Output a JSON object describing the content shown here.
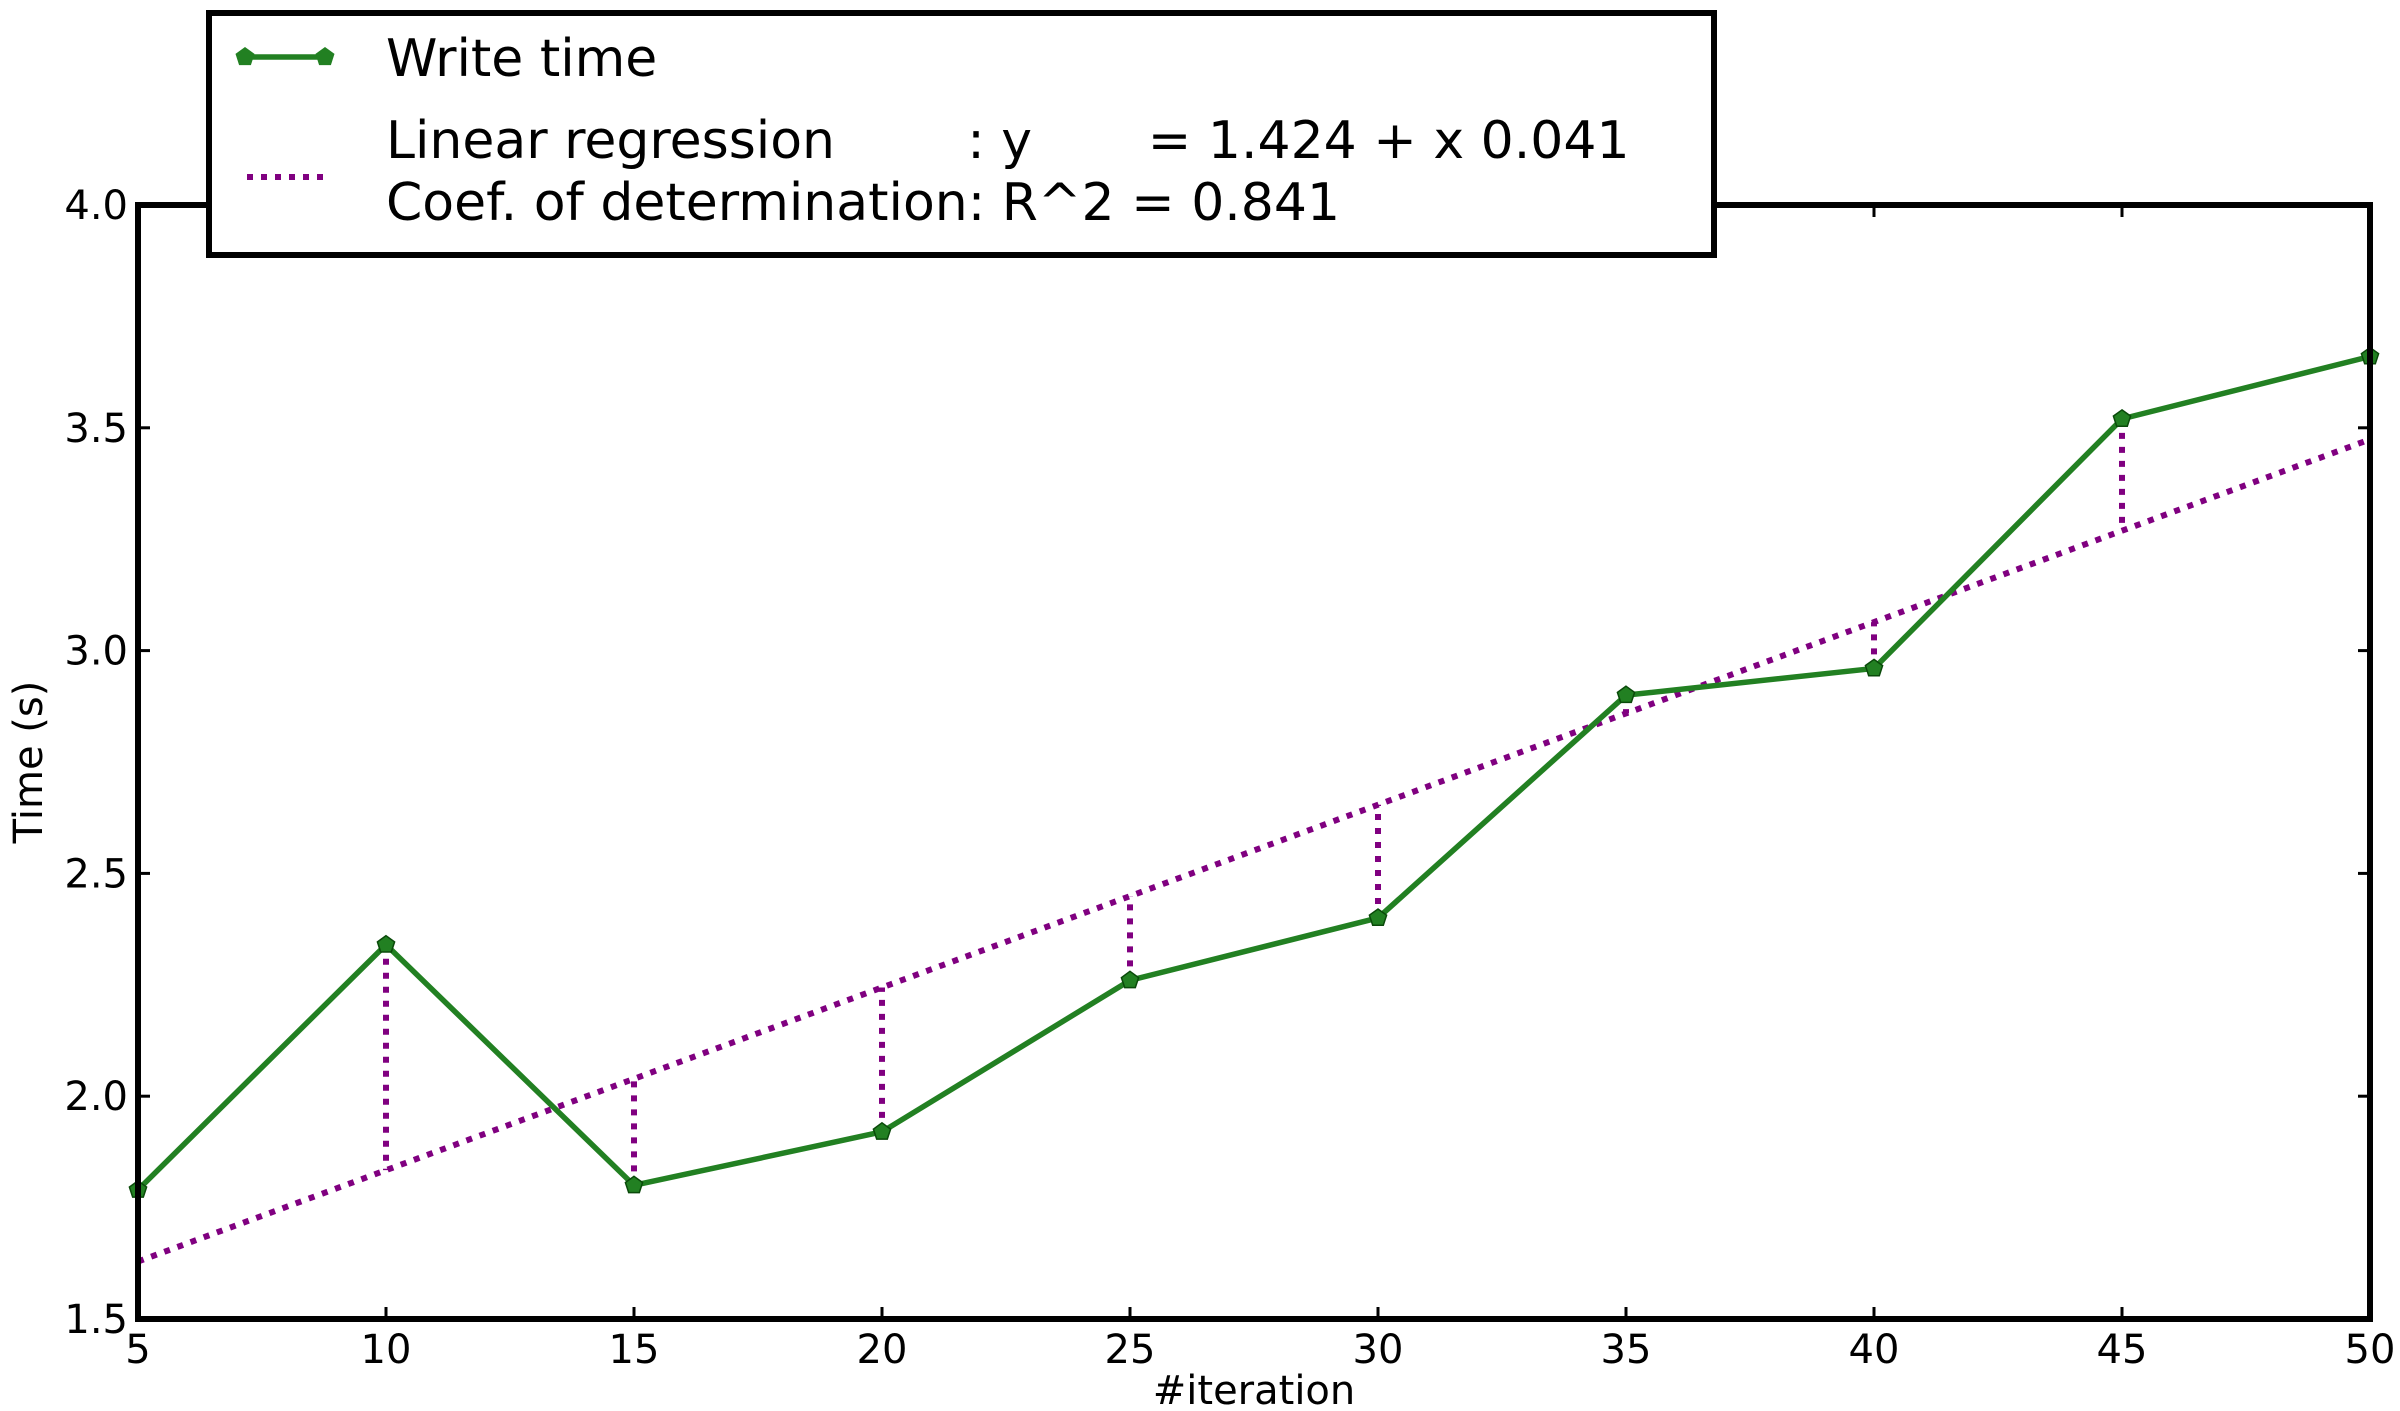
{
  "chart_data": {
    "type": "line",
    "xlabel": "#iteration",
    "ylabel": "Time (s)",
    "xlim": [
      5,
      50
    ],
    "ylim": [
      1.5,
      4.0
    ],
    "xticks": [
      "5",
      "10",
      "15",
      "20",
      "25",
      "30",
      "35",
      "40",
      "45",
      "50"
    ],
    "yticks": [
      "1.5",
      "2.0",
      "2.5",
      "3.0",
      "3.5",
      "4.0"
    ],
    "x": [
      5,
      10,
      15,
      20,
      25,
      30,
      35,
      40,
      45,
      50
    ],
    "series": [
      {
        "name": "Write time",
        "values": [
          1.79,
          2.34,
          1.8,
          1.92,
          2.26,
          2.4,
          2.9,
          2.96,
          3.52,
          3.66
        ],
        "color": "#228022",
        "marker": "pentagon"
      }
    ],
    "regression": {
      "intercept": 1.424,
      "slope": 0.041,
      "color": "#800080",
      "style": "dotted",
      "residual_lines": true
    },
    "legend": {
      "placement": "top-left, above plot",
      "entries": [
        {
          "label": "Write time"
        },
        {
          "label_line1": "Linear regression        : y       = 1.424 + x 0.041",
          "label_line2": "Coef. of determination: R^2 = 0.841"
        }
      ]
    },
    "grid": false
  }
}
